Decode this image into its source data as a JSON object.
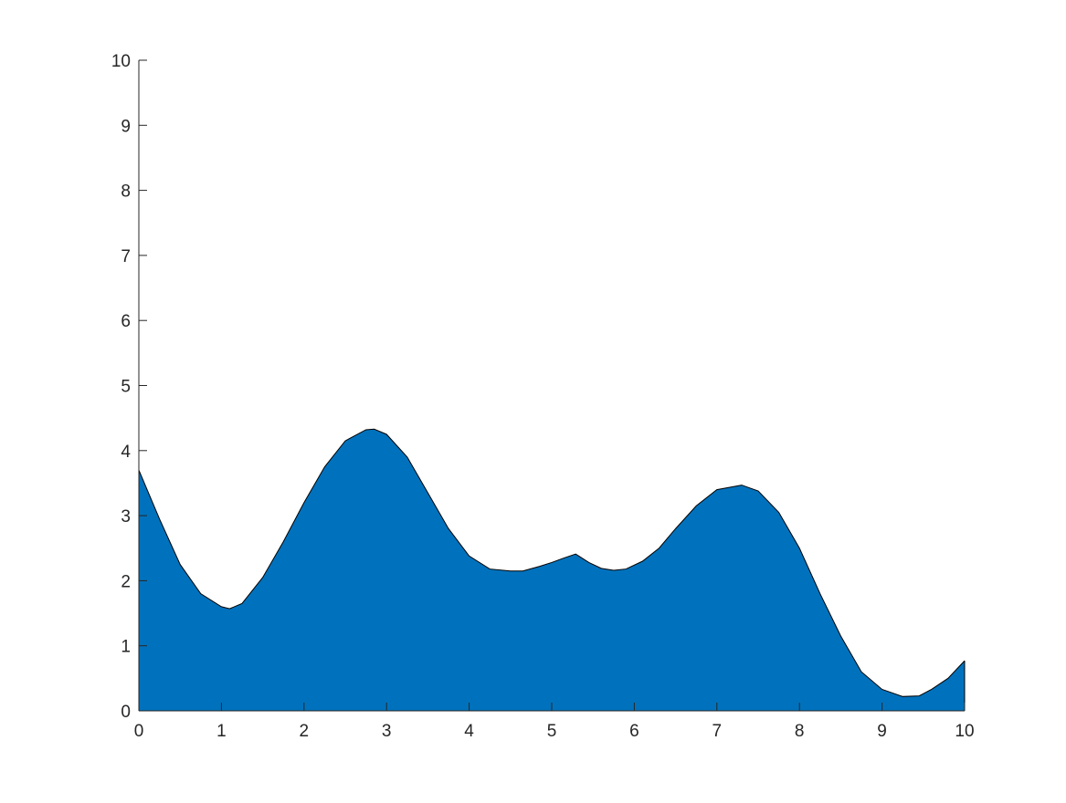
{
  "chart_data": {
    "type": "area",
    "title": "",
    "xlabel": "",
    "ylabel": "",
    "xlim": [
      0,
      10
    ],
    "ylim": [
      0,
      10
    ],
    "xticks": [
      0,
      1,
      2,
      3,
      4,
      5,
      6,
      7,
      8,
      9,
      10
    ],
    "yticks": [
      0,
      1,
      2,
      3,
      4,
      5,
      6,
      7,
      8,
      9,
      10
    ],
    "grid": false,
    "legend": "none",
    "fill_color": "#0072BD",
    "line_color": "#000000",
    "series": [
      {
        "x": [
          0,
          0.25,
          0.5,
          0.75,
          1.0,
          1.1,
          1.25,
          1.5,
          1.75,
          2.0,
          2.25,
          2.5,
          2.75,
          2.85,
          3.0,
          3.25,
          3.5,
          3.75,
          4.0,
          4.25,
          4.5,
          4.65,
          4.85,
          5.0,
          5.15,
          5.29,
          5.45,
          5.6,
          5.75,
          5.9,
          6.1,
          6.3,
          6.5,
          6.75,
          7.0,
          7.3,
          7.5,
          7.75,
          8.0,
          8.25,
          8.5,
          8.75,
          9.0,
          9.25,
          9.45,
          9.6,
          9.8,
          10.0
        ],
        "values": [
          3.7,
          2.95,
          2.25,
          1.8,
          1.6,
          1.57,
          1.65,
          2.05,
          2.6,
          3.2,
          3.75,
          4.15,
          4.32,
          4.33,
          4.25,
          3.9,
          3.35,
          2.8,
          2.38,
          2.18,
          2.15,
          2.15,
          2.22,
          2.28,
          2.35,
          2.41,
          2.28,
          2.19,
          2.16,
          2.18,
          2.3,
          2.5,
          2.8,
          3.15,
          3.4,
          3.47,
          3.38,
          3.05,
          2.5,
          1.8,
          1.15,
          0.6,
          0.33,
          0.22,
          0.23,
          0.33,
          0.5,
          0.77
        ]
      }
    ]
  }
}
